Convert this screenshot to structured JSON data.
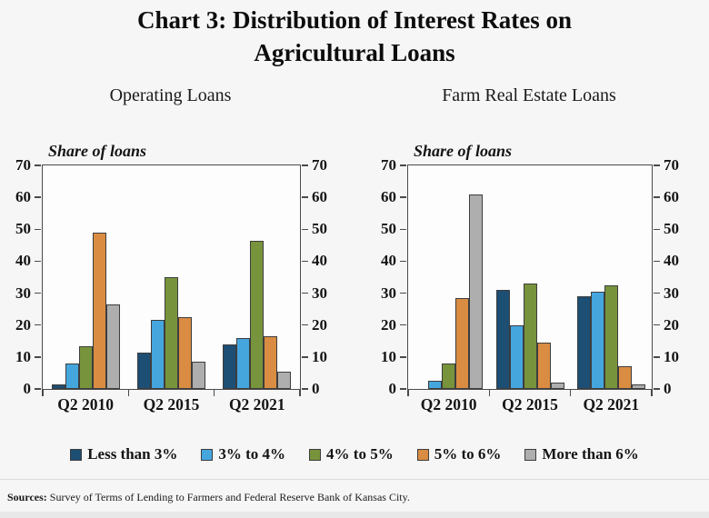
{
  "title_lines": [
    "Chart 3: Distribution of Interest Rates on",
    "Agricultural Loans"
  ],
  "legend": [
    {
      "label": "Less than 3%",
      "color": "#1d4e74"
    },
    {
      "label": "3% to 4%",
      "color": "#45a6de"
    },
    {
      "label": "4% to 5%",
      "color": "#77933c"
    },
    {
      "label": "5% to 6%",
      "color": "#d98c42"
    },
    {
      "label": "More than 6%",
      "color": "#aeaeae"
    }
  ],
  "footer": {
    "sources_label": "Sources:",
    "sources_text": " Survey of Terms of Lending to Farmers and Federal Reserve Bank of Kansas City."
  },
  "chart_data": [
    {
      "type": "bar",
      "title": "Operating Loans",
      "ylabel": "Share of loans",
      "ylim": [
        0,
        70
      ],
      "yticks": [
        0,
        10,
        20,
        30,
        40,
        50,
        60,
        70
      ],
      "grid": false,
      "dual_axis_labels": true,
      "categories": [
        "Q2 2010",
        "Q2 2015",
        "Q2 2021"
      ],
      "series": [
        {
          "name": "Less than 3%",
          "color": "#1d4e74",
          "values": [
            1.5,
            11.5,
            14
          ]
        },
        {
          "name": "3% to 4%",
          "color": "#45a6de",
          "values": [
            8,
            21.5,
            16
          ]
        },
        {
          "name": "4% to 5%",
          "color": "#77933c",
          "values": [
            13.5,
            35,
            46.5
          ]
        },
        {
          "name": "5% to 6%",
          "color": "#d98c42",
          "values": [
            49,
            22.5,
            16.5
          ]
        },
        {
          "name": "More than 6%",
          "color": "#aeaeae",
          "values": [
            26.5,
            8.5,
            5.5
          ]
        }
      ]
    },
    {
      "type": "bar",
      "title": "Farm Real Estate Loans",
      "ylabel": "Share of loans",
      "ylim": [
        0,
        70
      ],
      "yticks": [
        0,
        10,
        20,
        30,
        40,
        50,
        60,
        70
      ],
      "grid": false,
      "dual_axis_labels": true,
      "categories": [
        "Q2 2010",
        "Q2 2015",
        "Q2 2021"
      ],
      "series": [
        {
          "name": "Less than 3%",
          "color": "#1d4e74",
          "values": [
            0,
            31,
            29
          ]
        },
        {
          "name": "3% to 4%",
          "color": "#45a6de",
          "values": [
            2.5,
            20,
            30.5
          ]
        },
        {
          "name": "4% to 5%",
          "color": "#77933c",
          "values": [
            8,
            33,
            32.5
          ]
        },
        {
          "name": "5% to 6%",
          "color": "#d98c42",
          "values": [
            28.5,
            14.5,
            7
          ]
        },
        {
          "name": "More than 6%",
          "color": "#aeaeae",
          "values": [
            61,
            2,
            1.5
          ]
        }
      ]
    }
  ]
}
